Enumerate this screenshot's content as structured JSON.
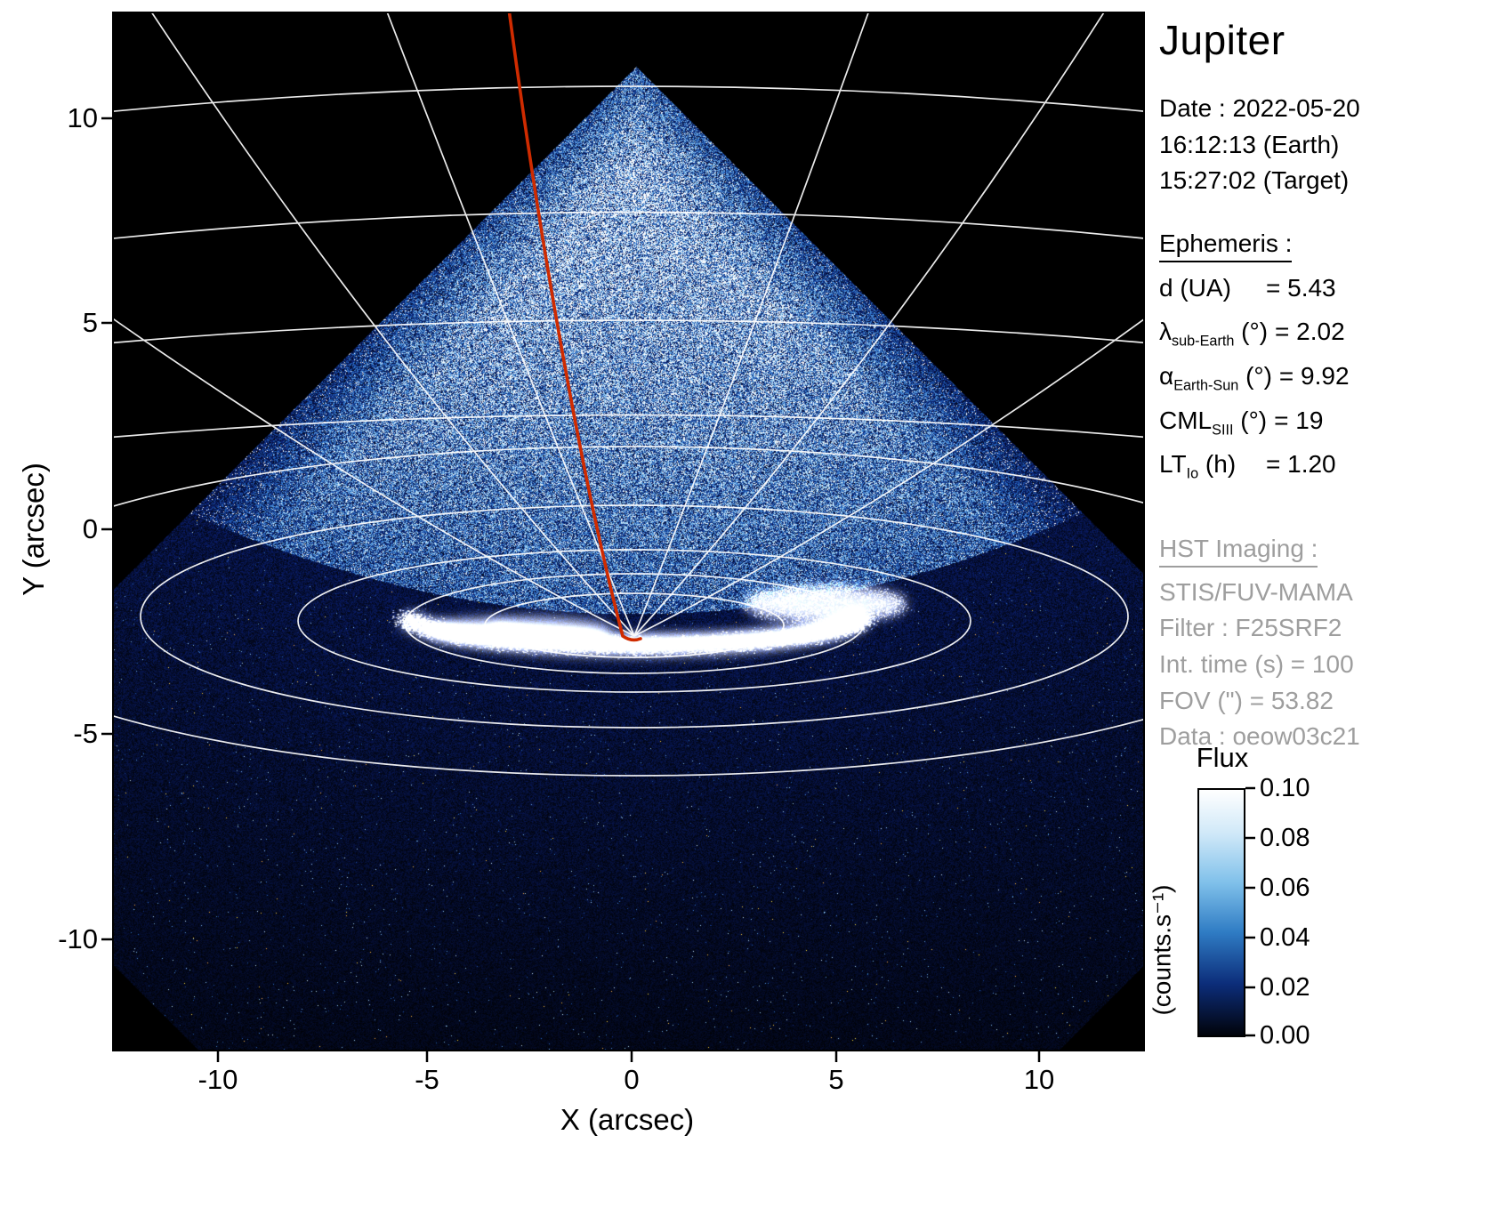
{
  "info_panel": {
    "title": "Jupiter",
    "date_line": "Date : 2022-05-20",
    "earth_time": "16:12:13 (Earth)",
    "target_time": "15:27:02 (Target)",
    "ephemeris": {
      "heading": "Ephemeris :",
      "items": [
        {
          "pre": "d",
          "sub": "",
          "post": " (UA)",
          "value": "= 5.43"
        },
        {
          "pre": "λ",
          "sub": "sub-Earth",
          "post": " (°)",
          "value": "= 2.02"
        },
        {
          "pre": "α",
          "sub": "Earth-Sun",
          "post": " (°)",
          "value": "= 9.92"
        },
        {
          "pre": "CML",
          "sub": "SIII",
          "post": " (°)",
          "value": "= 19"
        },
        {
          "pre": "LT",
          "sub": "Io",
          "post": " (h)",
          "value": "= 1.20"
        }
      ]
    },
    "hst": {
      "heading": "HST Imaging :",
      "lines": [
        "STIS/FUV-MAMA",
        "Filter : F25SRF2",
        "Int. time (s) = 100",
        "FOV (\") = 53.82",
        "Data : oeow03c21"
      ]
    }
  },
  "axes": {
    "xlabel": "X (arcsec)",
    "ylabel": "Y (arcsec)",
    "x_tick_labels": [
      "-10",
      "-5",
      "0",
      "5",
      "10"
    ],
    "y_tick_labels": [
      "10",
      "5",
      "0",
      "-5",
      "-10"
    ]
  },
  "colorbar": {
    "title": "Flux",
    "unit": "(counts.s⁻¹)",
    "tick_labels": [
      "0.10",
      "0.08",
      "0.06",
      "0.04",
      "0.02",
      "0.00"
    ]
  },
  "chart_data": {
    "type": "heatmap",
    "title": "Jupiter",
    "xlabel": "X (arcsec)",
    "ylabel": "Y (arcsec)",
    "xlim": [
      -12.6,
      12.5
    ],
    "ylim": [
      -12.7,
      12.6
    ],
    "x_ticks": [
      -10,
      -5,
      0,
      5,
      10
    ],
    "y_ticks": [
      -10,
      -5,
      0,
      5,
      10
    ],
    "colorbar": {
      "label": "Flux",
      "unit": "counts.s⁻¹",
      "range": [
        0.0,
        0.1
      ],
      "ticks": [
        0.0,
        0.02,
        0.04,
        0.06,
        0.08,
        0.1
      ],
      "colormap_stops": [
        "#000000",
        "#0a1e6e",
        "#2864c8",
        "#96cdf0",
        "#ffffff"
      ]
    },
    "image_content": {
      "description": "HST STIS/FUV-MAMA photon-counting image of Jupiter, detector FOV rotated ~45° (diamond shape on black background)",
      "dayside_disk": "bright speckled blue triangular region, apex near (0.1, 11.3) arcsec, flux ~0.04-0.10 counts/s",
      "nightside_region": "dark navy noisy region below ~ -1.5 arcsec, flux ~0.00-0.02 counts/s",
      "auroral_oval": {
        "center_arcsec": [
          0.2,
          -2.0
        ],
        "x_extent_arcsec": [
          -5.6,
          6.1
        ],
        "y_extent_arcsec": [
          -2.8,
          -1.4
        ],
        "peak_flux": "saturated, >= 0.10 counts/s"
      },
      "graticule": "white planetocentric latitude/longitude grid converging toward the pole at ~(0.1, -2.3) arcsec",
      "red_curve": "central meridian (CML SIII = 19°) drawn from top of frame down to the pole region",
      "ephemeris": {
        "d_UA": 5.43,
        "lambda_subEarth_deg": 2.02,
        "alpha_EarthSun_deg": 9.92,
        "CML_SIII_deg": 19,
        "LT_Io_h": 1.2
      },
      "instrument": {
        "config": "STIS/FUV-MAMA",
        "filter": "F25SRF2",
        "int_time_s": 100,
        "fov_arcsec": 53.82,
        "dataset": "oeow03c21"
      }
    }
  }
}
